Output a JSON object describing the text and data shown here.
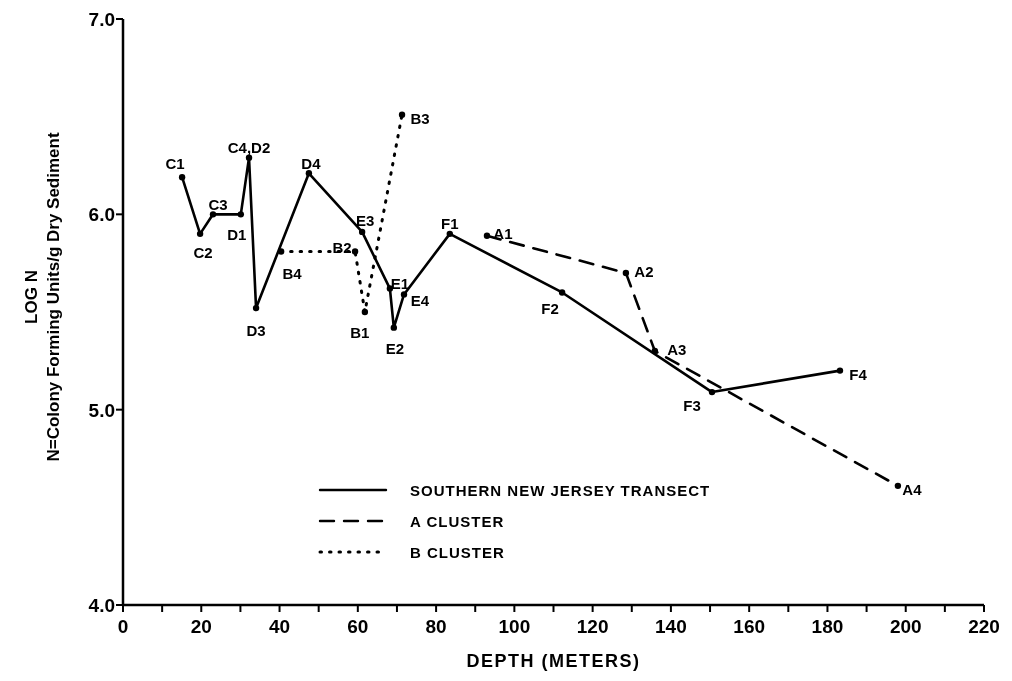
{
  "chart_data": {
    "type": "line",
    "xlabel": "DEPTH (METERS)",
    "ylabel": "LOG N\nN=Colony Forming Units/g Dry Sediment",
    "xlim": [
      0,
      220
    ],
    "ylim": [
      4.0,
      7.0
    ],
    "xticks": [
      0,
      {
        "value": 10,
        "label": null
      },
      20,
      {
        "value": 30,
        "label": null
      },
      40,
      {
        "value": 50,
        "label": null
      },
      60,
      {
        "value": 70,
        "label": null
      },
      80,
      {
        "value": 90,
        "label": null
      },
      100,
      {
        "value": 110,
        "label": null
      },
      120,
      {
        "value": 130,
        "label": null
      },
      140,
      {
        "value": 150,
        "label": null
      },
      160,
      {
        "value": 170,
        "label": null
      },
      180,
      {
        "value": 190,
        "label": null
      },
      200,
      {
        "value": 210,
        "label": null
      },
      220
    ],
    "yticks": [
      {
        "value": 4,
        "label": "4.0"
      },
      {
        "value": 5,
        "label": "5.0"
      },
      {
        "value": 6,
        "label": "6.0"
      },
      {
        "value": 7,
        "label": "7.0"
      }
    ],
    "grid": false,
    "legend": "bottom",
    "marker": "circle",
    "series": [
      {
        "name": "SOUTHERN NEW JERSEY TRANSECT",
        "color": "#000000",
        "line_style": "solid",
        "x": [
          15.1,
          19.7,
          23,
          30.1,
          32.2,
          34,
          47.5,
          61.1,
          68.2,
          69.2,
          71.8,
          83.5,
          112.2,
          150.5,
          183.2
        ],
        "values": [
          6.19,
          5.9,
          6.0,
          6.0,
          6.29,
          5.52,
          6.21,
          5.91,
          5.62,
          5.42,
          5.59,
          5.9,
          5.6,
          5.09,
          5.2
        ]
      },
      {
        "name": "A CLUSTER",
        "color": "#000000",
        "line_style": "dashed",
        "x": [
          93,
          128.5,
          135.9,
          198
        ],
        "values": [
          5.89,
          5.7,
          5.3,
          4.61
        ]
      },
      {
        "name": "B CLUSTER",
        "color": "#000000",
        "line_style": "dotted",
        "x": [
          40.4,
          59.3,
          61.8,
          71.3
        ],
        "values": [
          5.81,
          5.81,
          5.5,
          6.51
        ]
      }
    ],
    "annotations": [
      {
        "text": "C1",
        "x": 15.1,
        "y": 6.19
      },
      {
        "text": "C2",
        "x": 19.7,
        "y": 5.9
      },
      {
        "text": "C3",
        "x": 23,
        "y": 6.0
      },
      {
        "text": "D1",
        "x": 30.1,
        "y": 6.0
      },
      {
        "text": "C4,D2",
        "x": 32.2,
        "y": 6.29
      },
      {
        "text": "D3",
        "x": 34,
        "y": 5.52
      },
      {
        "text": "D4",
        "x": 47.5,
        "y": 6.21
      },
      {
        "text": "B4",
        "x": 40.4,
        "y": 5.81
      },
      {
        "text": "E3",
        "x": 61.1,
        "y": 5.91
      },
      {
        "text": "B2",
        "x": 59.3,
        "y": 5.81
      },
      {
        "text": "B1",
        "x": 61.8,
        "y": 5.5
      },
      {
        "text": "B3",
        "x": 71.3,
        "y": 6.51
      },
      {
        "text": "E1",
        "x": 68.2,
        "y": 5.62
      },
      {
        "text": "E2",
        "x": 69.2,
        "y": 5.42
      },
      {
        "text": "E4",
        "x": 71.8,
        "y": 5.59
      },
      {
        "text": "F1",
        "x": 83.5,
        "y": 5.9
      },
      {
        "text": "A1",
        "x": 93,
        "y": 5.89
      },
      {
        "text": "A2",
        "x": 128.5,
        "y": 5.7
      },
      {
        "text": "F2",
        "x": 112.2,
        "y": 5.6
      },
      {
        "text": "A3",
        "x": 135.9,
        "y": 5.3
      },
      {
        "text": "F3",
        "x": 150.5,
        "y": 5.09
      },
      {
        "text": "F4",
        "x": 183.2,
        "y": 5.2
      },
      {
        "text": "A4",
        "x": 198,
        "y": 4.61
      }
    ]
  }
}
